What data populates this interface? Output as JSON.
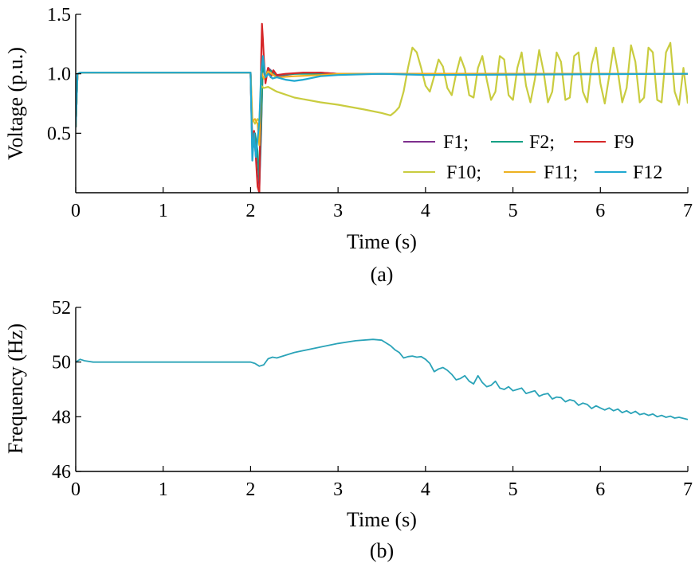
{
  "chart_data": [
    {
      "type": "line",
      "caption": "(a)",
      "xlabel": "Time (s)",
      "ylabel": "Voltage (p.u.)",
      "xlim": [
        0,
        7
      ],
      "ylim": [
        0,
        1.5
      ],
      "xticks": [
        "0",
        "1",
        "2",
        "3",
        "4",
        "5",
        "6",
        "7"
      ],
      "yticks": [
        "0.5",
        "1.0",
        "1.5"
      ],
      "grid": false,
      "legend_position": "bottom-right",
      "legend_rows": [
        [
          "F1;",
          "F2;",
          "F9"
        ],
        [
          "F10;",
          "F11;",
          "F12"
        ]
      ],
      "series": [
        {
          "name": "F1",
          "color": "#7E2F8E",
          "x": [
            0,
            0.02,
            0.05,
            2.0,
            2.02,
            2.05,
            2.08,
            2.1,
            2.12,
            2.14,
            2.17,
            2.2,
            2.3,
            2.5,
            2.8,
            3.0,
            7.0
          ],
          "y": [
            0.55,
            1.0,
            1.01,
            1.01,
            0.35,
            0.45,
            0.3,
            0.05,
            0.5,
            1.12,
            0.95,
            1.05,
            0.98,
            1.0,
            1.01,
            1.0,
            1.0
          ]
        },
        {
          "name": "F2",
          "color": "#16A085",
          "x": [
            0,
            0.02,
            0.05,
            2.0,
            2.02,
            2.05,
            2.08,
            2.1,
            2.12,
            2.14,
            2.17,
            2.2,
            2.3,
            2.5,
            2.8,
            3.0,
            7.0
          ],
          "y": [
            0.55,
            1.0,
            1.01,
            1.01,
            0.38,
            0.5,
            0.35,
            0.1,
            0.55,
            1.1,
            0.96,
            1.04,
            0.99,
            1.0,
            1.0,
            1.0,
            1.0
          ]
        },
        {
          "name": "F9",
          "color": "#D62728",
          "x": [
            0,
            0.02,
            0.05,
            2.0,
            2.02,
            2.04,
            2.06,
            2.08,
            2.1,
            2.12,
            2.13,
            2.14,
            2.15,
            2.17,
            2.2,
            2.23,
            2.26,
            2.3,
            2.4,
            2.6,
            2.8,
            3.0,
            3.5,
            7.0
          ],
          "y": [
            0.55,
            1.0,
            1.01,
            1.01,
            0.4,
            0.52,
            0.3,
            0.05,
            0.0,
            1.1,
            1.42,
            1.3,
            1.15,
            0.92,
            1.05,
            0.97,
            1.03,
            0.99,
            1.0,
            1.01,
            1.01,
            1.0,
            1.0,
            1.0
          ]
        },
        {
          "name": "F10",
          "color": "#C9CC3F",
          "x": [
            0,
            0.02,
            0.05,
            2.0,
            2.02,
            2.05,
            2.08,
            2.1,
            2.12,
            2.15,
            2.2,
            2.3,
            2.5,
            2.8,
            3.0,
            3.3,
            3.5,
            3.6,
            3.65,
            3.7,
            3.75,
            3.8,
            3.85,
            3.9,
            3.95,
            4.0,
            4.05,
            4.1,
            4.15,
            4.2,
            4.25,
            4.3,
            4.35,
            4.4,
            4.45,
            4.5,
            4.55,
            4.6,
            4.65,
            4.7,
            4.75,
            4.8,
            4.85,
            4.9,
            4.95,
            5.0,
            5.05,
            5.1,
            5.15,
            5.2,
            5.25,
            5.3,
            5.35,
            5.4,
            5.45,
            5.5,
            5.55,
            5.6,
            5.65,
            5.7,
            5.75,
            5.8,
            5.85,
            5.9,
            5.95,
            6.0,
            6.05,
            6.1,
            6.15,
            6.2,
            6.25,
            6.3,
            6.35,
            6.4,
            6.45,
            6.5,
            6.55,
            6.6,
            6.65,
            6.7,
            6.75,
            6.8,
            6.85,
            6.9,
            6.95,
            7.0
          ],
          "y": [
            0.55,
            1.0,
            1.01,
            1.01,
            0.62,
            0.58,
            0.62,
            0.6,
            0.9,
            0.88,
            0.89,
            0.85,
            0.8,
            0.76,
            0.74,
            0.7,
            0.67,
            0.65,
            0.68,
            0.72,
            0.85,
            1.05,
            1.22,
            1.18,
            1.05,
            0.9,
            0.85,
            0.98,
            1.12,
            1.06,
            0.88,
            0.82,
            1.0,
            1.14,
            1.04,
            0.82,
            0.8,
            1.05,
            1.15,
            0.95,
            0.78,
            0.85,
            1.15,
            1.12,
            0.82,
            0.78,
            1.05,
            1.18,
            0.9,
            0.76,
            0.95,
            1.2,
            1.02,
            0.76,
            0.85,
            1.18,
            1.1,
            0.78,
            0.8,
            1.15,
            1.18,
            0.85,
            0.76,
            1.08,
            1.22,
            0.92,
            0.75,
            0.98,
            1.22,
            1.02,
            0.76,
            0.88,
            1.24,
            1.1,
            0.76,
            0.8,
            1.22,
            1.18,
            0.78,
            0.76,
            1.18,
            1.26,
            0.85,
            0.74,
            1.05,
            0.75
          ]
        },
        {
          "name": "F11",
          "color": "#EDB120",
          "x": [
            0,
            0.02,
            0.05,
            2.0,
            2.02,
            2.05,
            2.08,
            2.1,
            2.12,
            2.15,
            2.2,
            2.3,
            2.5,
            2.8,
            3.0,
            7.0
          ],
          "y": [
            0.55,
            1.0,
            1.01,
            1.01,
            0.6,
            0.62,
            0.58,
            0.4,
            1.02,
            0.96,
            1.02,
            0.97,
            0.98,
            0.99,
            1.0,
            1.0
          ]
        },
        {
          "name": "F12",
          "color": "#1FA8D0",
          "x": [
            0,
            0.02,
            0.05,
            2.0,
            2.02,
            2.04,
            2.06,
            2.08,
            2.1,
            2.12,
            2.14,
            2.17,
            2.2,
            2.25,
            2.3,
            2.4,
            2.5,
            2.6,
            2.8,
            3.0,
            3.5,
            4.0,
            7.0
          ],
          "y": [
            0.55,
            1.0,
            1.01,
            1.01,
            0.27,
            0.5,
            0.3,
            0.45,
            0.6,
            1.0,
            1.15,
            0.97,
            1.0,
            0.96,
            0.97,
            0.95,
            0.94,
            0.95,
            0.98,
            0.99,
            1.0,
            0.99,
            1.0
          ]
        }
      ]
    },
    {
      "type": "line",
      "caption": "(b)",
      "xlabel": "Time (s)",
      "ylabel": "Frequency (Hz)",
      "xlim": [
        0,
        7
      ],
      "ylim": [
        46,
        52
      ],
      "xticks": [
        "0",
        "1",
        "2",
        "3",
        "4",
        "5",
        "6",
        "7"
      ],
      "yticks": [
        "46",
        "48",
        "50",
        "52"
      ],
      "grid": false,
      "series": [
        {
          "color": "#2AA3B8",
          "x": [
            0,
            0.05,
            0.1,
            0.2,
            0.5,
            1.0,
            2.0,
            2.05,
            2.1,
            2.15,
            2.2,
            2.25,
            2.3,
            2.5,
            2.8,
            3.0,
            3.2,
            3.4,
            3.5,
            3.6,
            3.65,
            3.7,
            3.75,
            3.8,
            3.85,
            3.9,
            3.95,
            4.0,
            4.05,
            4.1,
            4.15,
            4.2,
            4.25,
            4.3,
            4.35,
            4.4,
            4.45,
            4.5,
            4.55,
            4.6,
            4.65,
            4.7,
            4.75,
            4.8,
            4.85,
            4.9,
            4.95,
            5.0,
            5.05,
            5.1,
            5.15,
            5.2,
            5.25,
            5.3,
            5.35,
            5.4,
            5.45,
            5.5,
            5.55,
            5.6,
            5.65,
            5.7,
            5.75,
            5.8,
            5.85,
            5.9,
            5.95,
            6.0,
            6.05,
            6.1,
            6.15,
            6.2,
            6.25,
            6.3,
            6.35,
            6.4,
            6.45,
            6.5,
            6.55,
            6.6,
            6.65,
            6.7,
            6.75,
            6.8,
            6.85,
            6.9,
            7.0
          ],
          "y": [
            50.0,
            50.1,
            50.05,
            50.0,
            50.0,
            50.0,
            50.0,
            49.95,
            49.85,
            49.9,
            50.12,
            50.18,
            50.15,
            50.35,
            50.55,
            50.68,
            50.78,
            50.83,
            50.8,
            50.6,
            50.45,
            50.35,
            50.15,
            50.2,
            50.22,
            50.18,
            50.2,
            50.1,
            49.95,
            49.65,
            49.75,
            49.8,
            49.7,
            49.55,
            49.35,
            49.4,
            49.5,
            49.3,
            49.2,
            49.5,
            49.25,
            49.1,
            49.15,
            49.3,
            49.05,
            49.0,
            49.1,
            48.95,
            49.0,
            49.05,
            48.85,
            48.9,
            48.95,
            48.75,
            48.82,
            48.85,
            48.65,
            48.72,
            48.7,
            48.55,
            48.62,
            48.58,
            48.42,
            48.5,
            48.45,
            48.3,
            48.4,
            48.32,
            48.25,
            48.32,
            48.22,
            48.28,
            48.15,
            48.22,
            48.12,
            48.2,
            48.08,
            48.12,
            48.05,
            48.1,
            48.0,
            48.05,
            47.98,
            48.02,
            47.95,
            47.98,
            47.9
          ]
        }
      ]
    }
  ]
}
